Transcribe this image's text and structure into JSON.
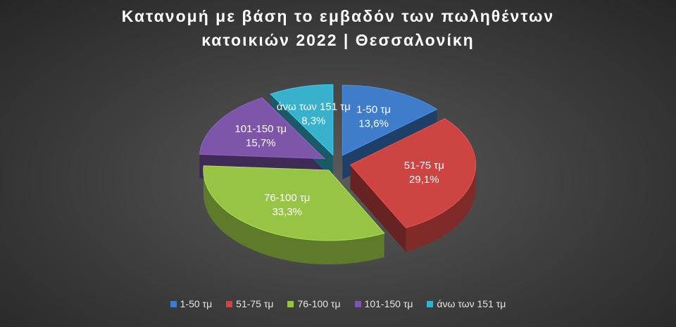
{
  "chart_data": {
    "type": "pie",
    "title_lines": [
      "Κατανομή με βάση το εμβαδόν των πωληθέντων",
      "κατοικιών 2022 | Θεσσαλονίκη"
    ],
    "legend_position": "bottom",
    "slices": [
      {
        "label": "1-50 τμ",
        "value": 13.6,
        "display": "13,6%",
        "color": "#3f7dcb"
      },
      {
        "label": "51-75 τμ",
        "value": 29.1,
        "display": "29,1%",
        "color": "#cc4543"
      },
      {
        "label": "76-100 τμ",
        "value": 33.3,
        "display": "33,3%",
        "color": "#98c446"
      },
      {
        "label": "101-150 τμ",
        "value": 15.7,
        "display": "15,7%",
        "color": "#7d56aa"
      },
      {
        "label": "άνω των 151 τμ",
        "value": 8.3,
        "display": "8,3%",
        "color": "#38b2cc"
      }
    ]
  }
}
